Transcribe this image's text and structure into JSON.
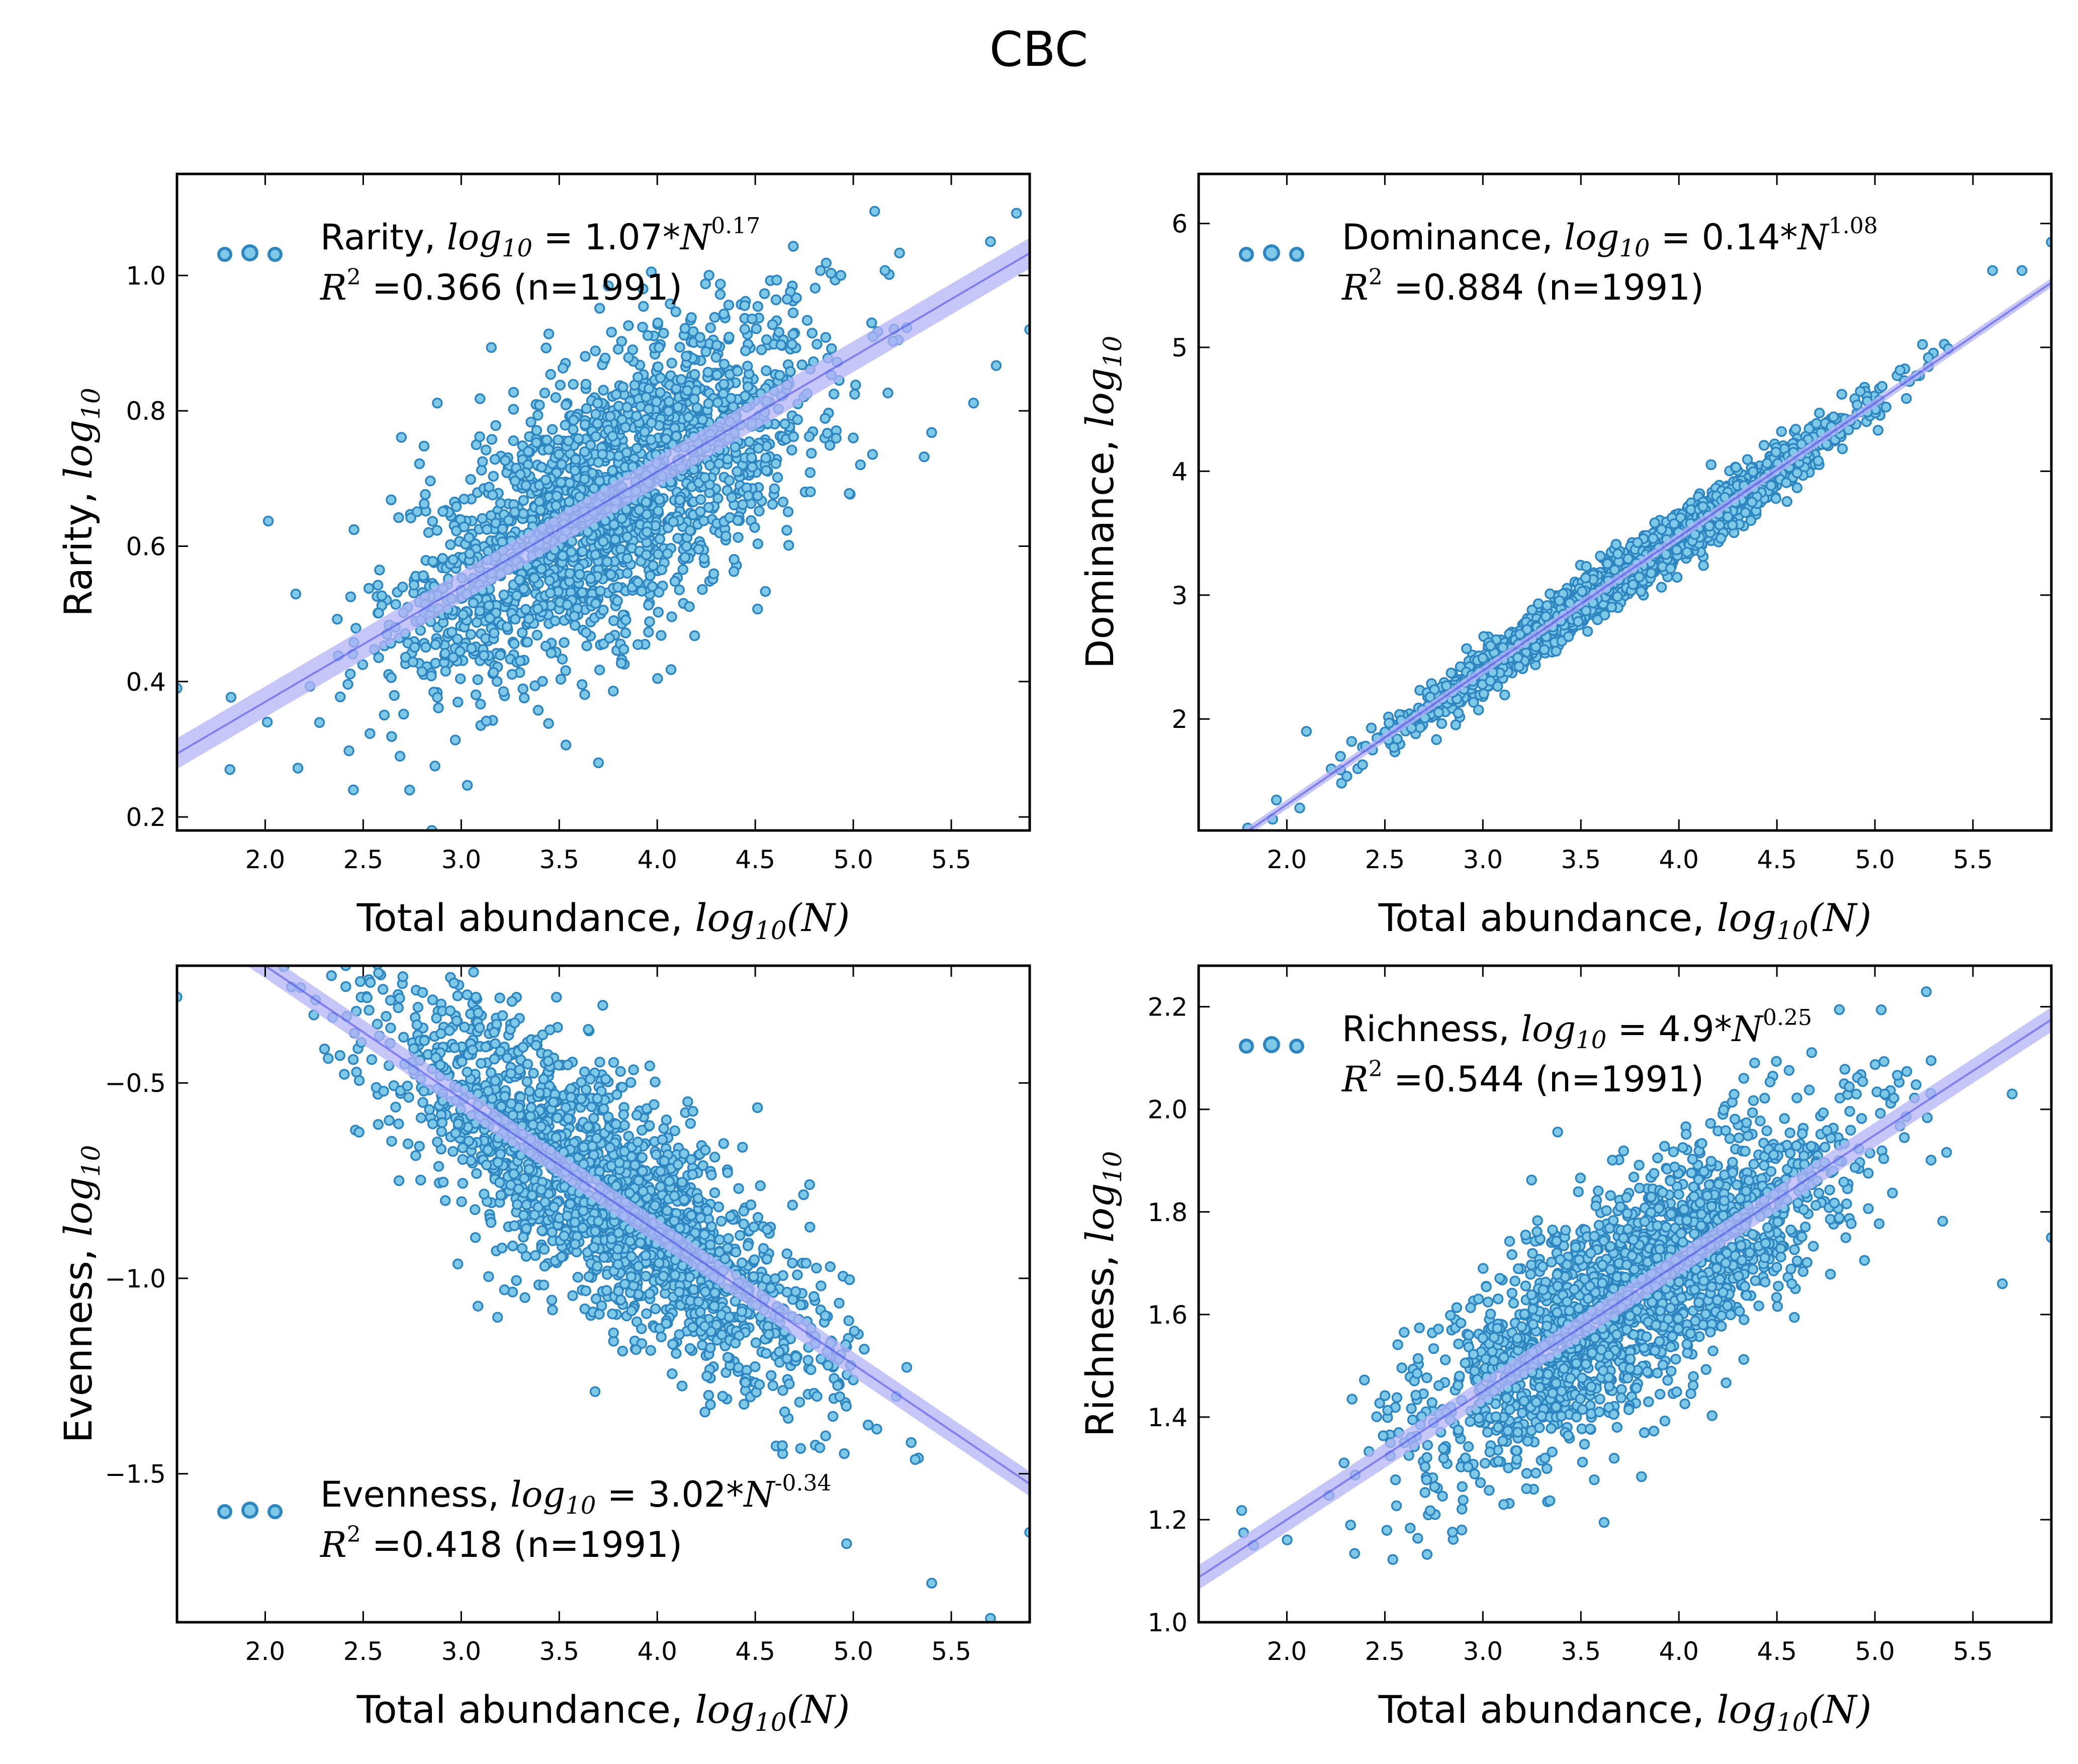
{
  "title": "CBC",
  "colors": {
    "point_fill": "#7ec8e8",
    "point_edge": "#2e86c1",
    "line": "#3a3ae6",
    "band": "#b3b3f7"
  },
  "chart_data": [
    {
      "type": "scatter",
      "name": "rarity",
      "xlabel": "Total abundance, log10(N)",
      "ylabel": "Rarity, log10",
      "xlim": [
        1.55,
        5.9
      ],
      "ylim": [
        0.18,
        1.15
      ],
      "xticks": [
        2.0,
        2.5,
        3.0,
        3.5,
        4.0,
        4.5,
        5.0,
        5.5
      ],
      "yticks": [
        0.2,
        0.4,
        0.6,
        0.8,
        1.0
      ],
      "xtick_labels": [
        "2.0",
        "2.5",
        "3.0",
        "3.5",
        "4.0",
        "4.5",
        "5.0",
        "5.5"
      ],
      "ytick_labels": [
        "0.2",
        "0.4",
        "0.6",
        "0.8",
        "1.0"
      ],
      "fit": {
        "slope": 0.17,
        "intercept": 0.03,
        "band": 0.02
      },
      "legend_position": "upper-left",
      "legend": {
        "name": "Rarity",
        "coef": "1.07",
        "exp": "0.17",
        "r2": "0.366",
        "n": "(n=1991)"
      },
      "n_points": 1991,
      "x_mean": 3.75,
      "x_sd": 0.55,
      "residual_sd": 0.1,
      "sample_points": [
        [
          1.55,
          0.39
        ],
        [
          1.82,
          0.27
        ],
        [
          2.45,
          0.24
        ],
        [
          5.7,
          1.05
        ],
        [
          5.9,
          0.92
        ],
        [
          2.85,
          0.18
        ],
        [
          3.7,
          0.28
        ],
        [
          5.0,
          0.76
        ]
      ]
    },
    {
      "type": "scatter",
      "name": "dominance",
      "xlabel": "Total abundance, log10(N)",
      "ylabel": "Dominance, log10",
      "xlim": [
        1.55,
        5.9
      ],
      "ylim": [
        1.1,
        6.4
      ],
      "xticks": [
        2.0,
        2.5,
        3.0,
        3.5,
        4.0,
        4.5,
        5.0,
        5.5
      ],
      "yticks": [
        2,
        3,
        4,
        5,
        6
      ],
      "xtick_labels": [
        "2.0",
        "2.5",
        "3.0",
        "3.5",
        "4.0",
        "4.5",
        "5.0",
        "5.5"
      ],
      "ytick_labels": [
        "2",
        "3",
        "4",
        "5",
        "6"
      ],
      "fit": {
        "slope": 1.08,
        "intercept": -0.85,
        "band": 0.02
      },
      "legend_position": "upper-left",
      "legend": {
        "name": "Dominance",
        "coef": "0.14",
        "exp": "1.08",
        "r2": "0.884",
        "n": "(n=1991)"
      },
      "n_points": 1991,
      "x_mean": 3.75,
      "x_sd": 0.55,
      "residual_sd": 0.1,
      "sample_points": [
        [
          1.8,
          1.12
        ],
        [
          5.9,
          5.85
        ],
        [
          5.75,
          5.62
        ],
        [
          5.6,
          5.62
        ],
        [
          2.1,
          1.9
        ]
      ]
    },
    {
      "type": "scatter",
      "name": "evenness",
      "xlabel": "Total abundance, log10(N)",
      "ylabel": "Evenness, log10",
      "xlim": [
        1.55,
        5.9
      ],
      "ylim": [
        -1.88,
        -0.2
      ],
      "xticks": [
        2.0,
        2.5,
        3.0,
        3.5,
        4.0,
        4.5,
        5.0,
        5.5
      ],
      "yticks": [
        -1.5,
        -1.0,
        -0.5
      ],
      "xtick_labels": [
        "2.0",
        "2.5",
        "3.0",
        "3.5",
        "4.0",
        "4.5",
        "5.0",
        "5.5"
      ],
      "ytick_labels": [
        "−1.5",
        "−1.0",
        "−0.5"
      ],
      "fit": {
        "slope": -0.34,
        "intercept": 0.48,
        "band": 0.025
      },
      "legend_position": "lower-left",
      "legend": {
        "name": "Evenness",
        "coef": "3.02",
        "exp": "-0.34",
        "r2": "0.418",
        "n": "(n=1991)"
      },
      "n_points": 1991,
      "x_mean": 3.75,
      "x_sd": 0.55,
      "residual_sd": 0.15,
      "sample_points": [
        [
          1.55,
          -0.28
        ],
        [
          5.9,
          -1.65
        ],
        [
          5.7,
          -1.87
        ],
        [
          5.4,
          -1.78
        ],
        [
          5.0,
          -1.26
        ]
      ]
    },
    {
      "type": "scatter",
      "name": "richness",
      "xlabel": "Total abundance, log10(N)",
      "ylabel": "Richness, log10",
      "xlim": [
        1.55,
        5.9
      ],
      "ylim": [
        1.0,
        2.28
      ],
      "xticks": [
        2.0,
        2.5,
        3.0,
        3.5,
        4.0,
        4.5,
        5.0,
        5.5
      ],
      "yticks": [
        1.0,
        1.2,
        1.4,
        1.6,
        1.8,
        2.0,
        2.2
      ],
      "xtick_labels": [
        "2.0",
        "2.5",
        "3.0",
        "3.5",
        "4.0",
        "4.5",
        "5.0",
        "5.5"
      ],
      "ytick_labels": [
        "1.0",
        "1.2",
        "1.4",
        "1.6",
        "1.8",
        "2.0",
        "2.2"
      ],
      "fit": {
        "slope": 0.25,
        "intercept": 0.7,
        "band": 0.02
      },
      "legend_position": "upper-left",
      "legend": {
        "name": "Richness",
        "coef": "4.9",
        "exp": "0.25",
        "r2": "0.544",
        "n": "(n=1991)"
      },
      "n_points": 1991,
      "x_mean": 3.75,
      "x_sd": 0.55,
      "residual_sd": 0.11,
      "sample_points": [
        [
          1.83,
          1.15
        ],
        [
          5.9,
          1.75
        ],
        [
          5.7,
          2.03
        ],
        [
          5.05,
          2.03
        ],
        [
          5.65,
          1.66
        ]
      ]
    }
  ]
}
